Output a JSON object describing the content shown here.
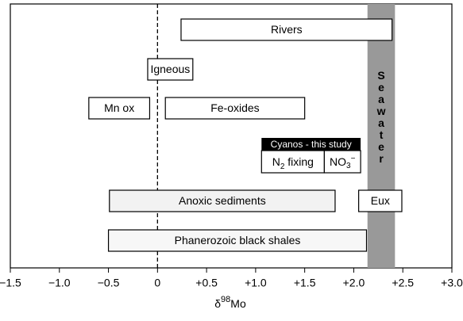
{
  "chart_data": {
    "type": "range_bar",
    "xlim": [
      -1.5,
      3.0
    ],
    "xticks": [
      {
        "value": -1.5,
        "label": "−1.5"
      },
      {
        "value": -1.0,
        "label": "−1.0"
      },
      {
        "value": -0.5,
        "label": "−0.5"
      },
      0,
      {
        "value": 0.5,
        "label": "+0.5"
      },
      {
        "value": 1.0,
        "label": "+1.0"
      },
      {
        "value": 1.5,
        "label": "+1.5"
      },
      {
        "value": 2.0,
        "label": "+2.0"
      },
      {
        "value": 2.5,
        "label": "+2.5"
      },
      {
        "value": 3.0,
        "label": "+3.0"
      }
    ],
    "x_label": [
      "δ",
      "98",
      "Mo"
    ],
    "zero_line": true,
    "bars": [
      {
        "label": "Rivers",
        "values": [
          0.24,
          2.39
        ],
        "color": "#ffffff"
      },
      {
        "label": "Igneous",
        "values": [
          -0.1,
          0.36
        ],
        "color": "#ffffff"
      },
      {
        "label": "Mn ox",
        "values": [
          -0.7,
          -0.08
        ],
        "color": "#ffffff"
      },
      {
        "label": "Fe-oxides",
        "values": [
          0.08,
          1.5
        ],
        "color": "#ffffff"
      },
      {
        "label": "Anoxic sediments",
        "values": [
          -0.49,
          1.81
        ],
        "color": "#f2f2f2"
      },
      {
        "label": "Eux",
        "values": [
          2.05,
          2.49
        ],
        "color": "#ffffff"
      },
      {
        "label": "Phanerozoic black shales",
        "values": [
          -0.5,
          2.13
        ],
        "color": "#f7f7f7"
      }
    ],
    "cyanos": {
      "title": "Cyanos - this study",
      "parts": [
        {
          "label": [
            "N",
            "2",
            " fixing"
          ],
          "values": [
            1.06,
            1.7
          ]
        },
        {
          "label": [
            "NO",
            "3",
            "−"
          ],
          "values": [
            1.7,
            2.07
          ]
        }
      ]
    },
    "seawater": {
      "label": "Seawater",
      "values": [
        2.14,
        2.42
      ],
      "color": "#999999"
    }
  }
}
